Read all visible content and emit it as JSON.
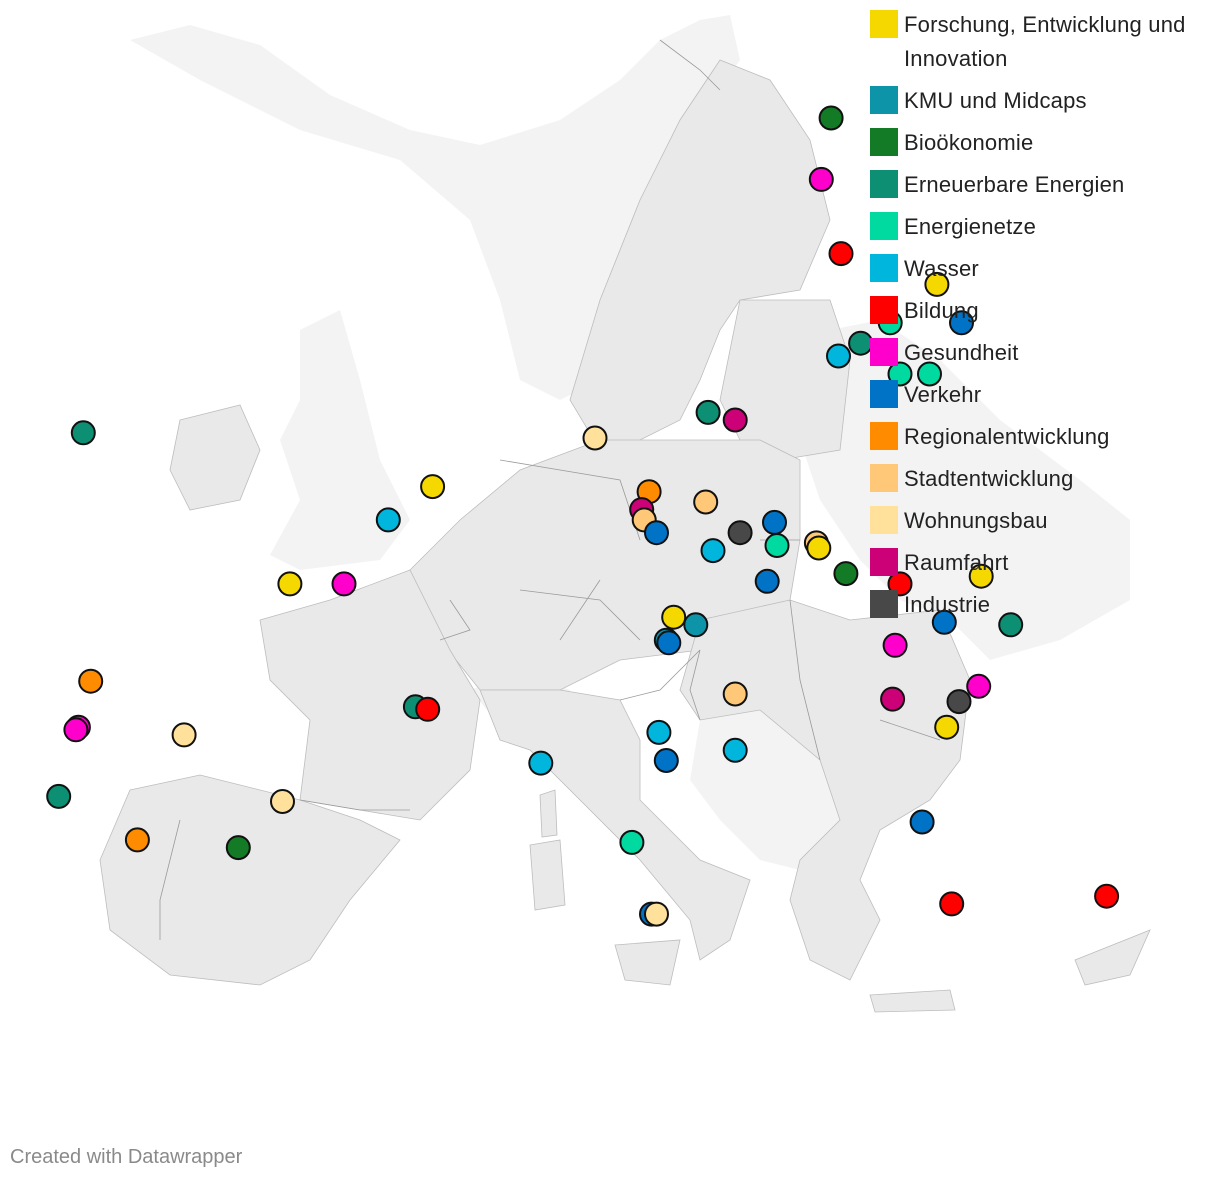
{
  "colors": {
    "research": "#f5d800",
    "sme": "#0e94a8",
    "bioeconomy": "#137a25",
    "renewables": "#0c8f72",
    "grids": "#00d9a0",
    "water": "#00b6dd",
    "education": "#ff0000",
    "health": "#ff00cc",
    "transport": "#0073c6",
    "regional": "#ff8c00",
    "urban": "#ffc878",
    "housing": "#ffe19c",
    "space": "#cc0077",
    "industry": "#484848"
  },
  "legend": [
    {
      "key": "research",
      "label": "Forschung, Entwicklung und Innovation"
    },
    {
      "key": "sme",
      "label": "KMU und Midcaps"
    },
    {
      "key": "bioeconomy",
      "label": "Bioökonomie"
    },
    {
      "key": "renewables",
      "label": "Erneuerbare Energien"
    },
    {
      "key": "grids",
      "label": "Energienetze"
    },
    {
      "key": "water",
      "label": "Wasser"
    },
    {
      "key": "education",
      "label": "Bildung"
    },
    {
      "key": "health",
      "label": "Gesundheit"
    },
    {
      "key": "transport",
      "label": "Verkehr"
    },
    {
      "key": "regional",
      "label": "Regionalentwicklung"
    },
    {
      "key": "urban",
      "label": "Stadtentwicklung"
    },
    {
      "key": "housing",
      "label": "Wohnungsbau"
    },
    {
      "key": "space",
      "label": "Raumfahrt"
    },
    {
      "key": "industry",
      "label": "Industrie"
    }
  ],
  "projects": [
    {
      "category": "bioeconomy",
      "lon": 22.2,
      "lat": 65.9
    },
    {
      "category": "health",
      "lon": 21.8,
      "lat": 63.5
    },
    {
      "category": "education",
      "lon": 22.6,
      "lat": 60.6
    },
    {
      "category": "research",
      "lon": 26.5,
      "lat": 59.4
    },
    {
      "category": "grids",
      "lon": 24.6,
      "lat": 57.9
    },
    {
      "category": "transport",
      "lon": 27.5,
      "lat": 57.9
    },
    {
      "category": "renewables",
      "lon": 23.4,
      "lat": 57.1
    },
    {
      "category": "water",
      "lon": 22.5,
      "lat": 56.6
    },
    {
      "category": "grids",
      "lon": 25.0,
      "lat": 55.9
    },
    {
      "category": "grids",
      "lon": 26.2,
      "lat": 55.9
    },
    {
      "category": "renewables",
      "lon": -8.2,
      "lat": 53.6
    },
    {
      "category": "renewables",
      "lon": 17.2,
      "lat": 54.4
    },
    {
      "category": "space",
      "lon": 18.3,
      "lat": 54.1
    },
    {
      "category": "housing",
      "lon": 12.6,
      "lat": 53.4
    },
    {
      "category": "research",
      "lon": 6.0,
      "lat": 51.5
    },
    {
      "category": "regional",
      "lon": 14.8,
      "lat": 51.3
    },
    {
      "category": "urban",
      "lon": 17.1,
      "lat": 50.9
    },
    {
      "category": "space",
      "lon": 14.5,
      "lat": 50.6
    },
    {
      "category": "urban",
      "lon": 14.6,
      "lat": 50.2
    },
    {
      "category": "water",
      "lon": 4.2,
      "lat": 50.2
    },
    {
      "category": "transport",
      "lon": 19.9,
      "lat": 50.1
    },
    {
      "category": "transport",
      "lon": 15.1,
      "lat": 49.7
    },
    {
      "category": "industry",
      "lon": 18.5,
      "lat": 49.7
    },
    {
      "category": "urban",
      "lon": 21.6,
      "lat": 49.3
    },
    {
      "category": "grids",
      "lon": 20.0,
      "lat": 49.2
    },
    {
      "category": "research",
      "lon": 21.7,
      "lat": 49.1
    },
    {
      "category": "water",
      "lon": 17.4,
      "lat": 49.0
    },
    {
      "category": "research",
      "lon": 28.3,
      "lat": 48.0
    },
    {
      "category": "bioeconomy",
      "lon": 22.8,
      "lat": 48.1
    },
    {
      "category": "transport",
      "lon": 19.6,
      "lat": 47.8
    },
    {
      "category": "education",
      "lon": 25.0,
      "lat": 47.7
    },
    {
      "category": "research",
      "lon": 0.2,
      "lat": 47.7
    },
    {
      "category": "health",
      "lon": 2.4,
      "lat": 47.7
    },
    {
      "category": "research",
      "lon": 15.8,
      "lat": 46.4
    },
    {
      "category": "sme",
      "lon": 16.7,
      "lat": 46.1
    },
    {
      "category": "transport",
      "lon": 26.8,
      "lat": 46.2
    },
    {
      "category": "renewables",
      "lon": 29.5,
      "lat": 46.1
    },
    {
      "category": "sme",
      "lon": 15.5,
      "lat": 45.5
    },
    {
      "category": "transport",
      "lon": 15.6,
      "lat": 45.4
    },
    {
      "category": "health",
      "lon": 24.8,
      "lat": 45.3
    },
    {
      "category": "regional",
      "lon": -7.9,
      "lat": 43.9
    },
    {
      "category": "health",
      "lon": 28.2,
      "lat": 43.7
    },
    {
      "category": "urban",
      "lon": 18.3,
      "lat": 43.4
    },
    {
      "category": "space",
      "lon": 24.7,
      "lat": 43.2
    },
    {
      "category": "industry",
      "lon": 27.4,
      "lat": 43.1
    },
    {
      "category": "renewables",
      "lon": 5.3,
      "lat": 42.9
    },
    {
      "category": "education",
      "lon": 5.8,
      "lat": 42.8
    },
    {
      "category": "research",
      "lon": 26.9,
      "lat": 42.1
    },
    {
      "category": "health",
      "lon": -8.4,
      "lat": 42.1
    },
    {
      "category": "health",
      "lon": -8.5,
      "lat": 42.0
    },
    {
      "category": "housing",
      "lon": -4.1,
      "lat": 41.8
    },
    {
      "category": "water",
      "lon": 15.2,
      "lat": 41.9
    },
    {
      "category": "water",
      "lon": 18.3,
      "lat": 41.2
    },
    {
      "category": "water",
      "lon": 10.4,
      "lat": 40.7
    },
    {
      "category": "transport",
      "lon": 15.5,
      "lat": 40.8
    },
    {
      "category": "renewables",
      "lon": -9.2,
      "lat": 39.4
    },
    {
      "category": "housing",
      "lon": -0.1,
      "lat": 39.2
    },
    {
      "category": "transport",
      "lon": 25.9,
      "lat": 38.4
    },
    {
      "category": "regional",
      "lon": -6.0,
      "lat": 37.7
    },
    {
      "category": "bioeconomy",
      "lon": -1.9,
      "lat": 37.4
    },
    {
      "category": "grids",
      "lon": 14.1,
      "lat": 37.6
    },
    {
      "category": "education",
      "lon": 33.4,
      "lat": 35.5
    },
    {
      "category": "education",
      "lon": 27.1,
      "lat": 35.2
    },
    {
      "category": "transport",
      "lon": 14.9,
      "lat": 34.8
    },
    {
      "category": "housing",
      "lon": 15.1,
      "lat": 34.8
    }
  ],
  "credit": "Created with Datawrapper"
}
